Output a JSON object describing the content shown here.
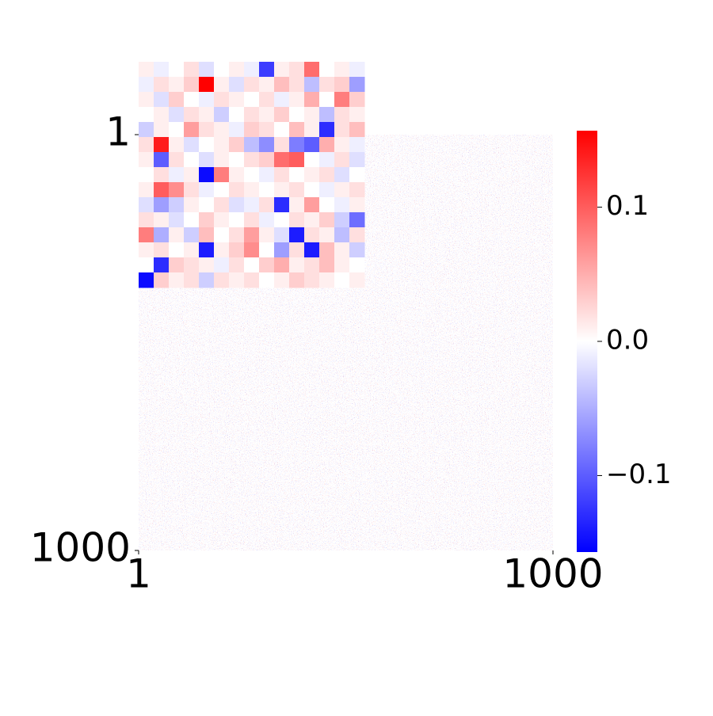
{
  "chart_data": {
    "type": "heatmap",
    "xlim": [
      1,
      1000
    ],
    "ylim": [
      1,
      1000
    ],
    "xticks": [
      1,
      1000
    ],
    "yticks": [
      1,
      1000
    ],
    "vlim": [
      -0.157,
      0.157
    ],
    "cmap": [
      "#0000ff",
      "#ffffff",
      "#ff0000"
    ],
    "colorbar_ticks": [
      {
        "value": 0.1,
        "label": "0.1"
      },
      {
        "value": 0,
        "label": "0.0"
      },
      {
        "value": -0.1,
        "label": "−0.1"
      }
    ],
    "inset": {
      "values": [
        [
          0.01,
          -0.01,
          0.0,
          0.02,
          -0.02,
          0.0,
          0.01,
          -0.01,
          -0.12,
          0.01,
          0.02,
          0.09,
          0.0,
          0.01,
          -0.01
        ],
        [
          -0.01,
          0.02,
          0.01,
          0.03,
          0.16,
          0.01,
          -0.02,
          0.02,
          0.01,
          0.04,
          0.02,
          -0.04,
          0.02,
          0.03,
          -0.06
        ],
        [
          0.01,
          -0.02,
          0.03,
          0.0,
          -0.01,
          0.02,
          0.01,
          0.0,
          0.02,
          -0.01,
          0.01,
          0.05,
          0.0,
          0.08,
          0.03
        ],
        [
          0.0,
          0.01,
          -0.02,
          0.02,
          0.01,
          -0.03,
          0.0,
          0.02,
          0.01,
          0.03,
          0.0,
          0.01,
          -0.04,
          0.02,
          0.01
        ],
        [
          -0.03,
          0.01,
          0.0,
          0.06,
          0.02,
          0.01,
          -0.01,
          0.03,
          0.02,
          0.0,
          0.04,
          0.01,
          -0.13,
          0.02,
          0.04
        ],
        [
          0.02,
          0.14,
          0.01,
          -0.02,
          0.0,
          0.01,
          0.03,
          -0.04,
          -0.07,
          0.02,
          -0.08,
          -0.1,
          0.05,
          0.01,
          -0.01
        ],
        [
          0.01,
          -0.1,
          0.02,
          0.0,
          -0.02,
          0.01,
          0.0,
          0.02,
          0.03,
          0.09,
          0.1,
          0.0,
          -0.01,
          0.02,
          -0.02
        ],
        [
          0.0,
          0.02,
          -0.01,
          0.01,
          -0.15,
          0.08,
          0.01,
          0.0,
          -0.01,
          0.02,
          0.0,
          0.01,
          0.02,
          -0.02,
          0.0
        ],
        [
          0.01,
          0.1,
          0.07,
          0.02,
          -0.01,
          0.0,
          0.02,
          0.01,
          0.0,
          0.01,
          0.02,
          0.0,
          -0.01,
          0.01,
          0.02
        ],
        [
          -0.02,
          -0.06,
          -0.03,
          0.01,
          0.0,
          0.02,
          -0.02,
          -0.01,
          0.02,
          -0.13,
          0.01,
          0.06,
          0.0,
          -0.01,
          0.01
        ],
        [
          0.02,
          0.01,
          -0.02,
          0.0,
          0.03,
          0.01,
          0.0,
          0.02,
          -0.01,
          0.0,
          0.02,
          0.01,
          0.03,
          -0.03,
          -0.09
        ],
        [
          0.08,
          -0.05,
          0.01,
          -0.03,
          0.04,
          0.0,
          0.02,
          0.06,
          0.01,
          -0.02,
          -0.14,
          0.02,
          0.01,
          -0.04,
          0.02
        ],
        [
          0.01,
          0.02,
          0.0,
          0.01,
          -0.14,
          0.01,
          0.03,
          0.07,
          0.0,
          -0.06,
          0.02,
          -0.14,
          0.04,
          0.01,
          -0.03
        ],
        [
          0.0,
          -0.13,
          0.03,
          0.02,
          0.01,
          -0.01,
          0.02,
          0.0,
          0.03,
          0.05,
          0.01,
          0.02,
          0.04,
          0.01,
          0.0
        ],
        [
          -0.15,
          0.03,
          0.01,
          0.02,
          -0.03,
          0.02,
          0.01,
          0.02,
          0.0,
          0.01,
          0.03,
          0.02,
          0.01,
          0.0,
          0.01
        ]
      ]
    }
  }
}
